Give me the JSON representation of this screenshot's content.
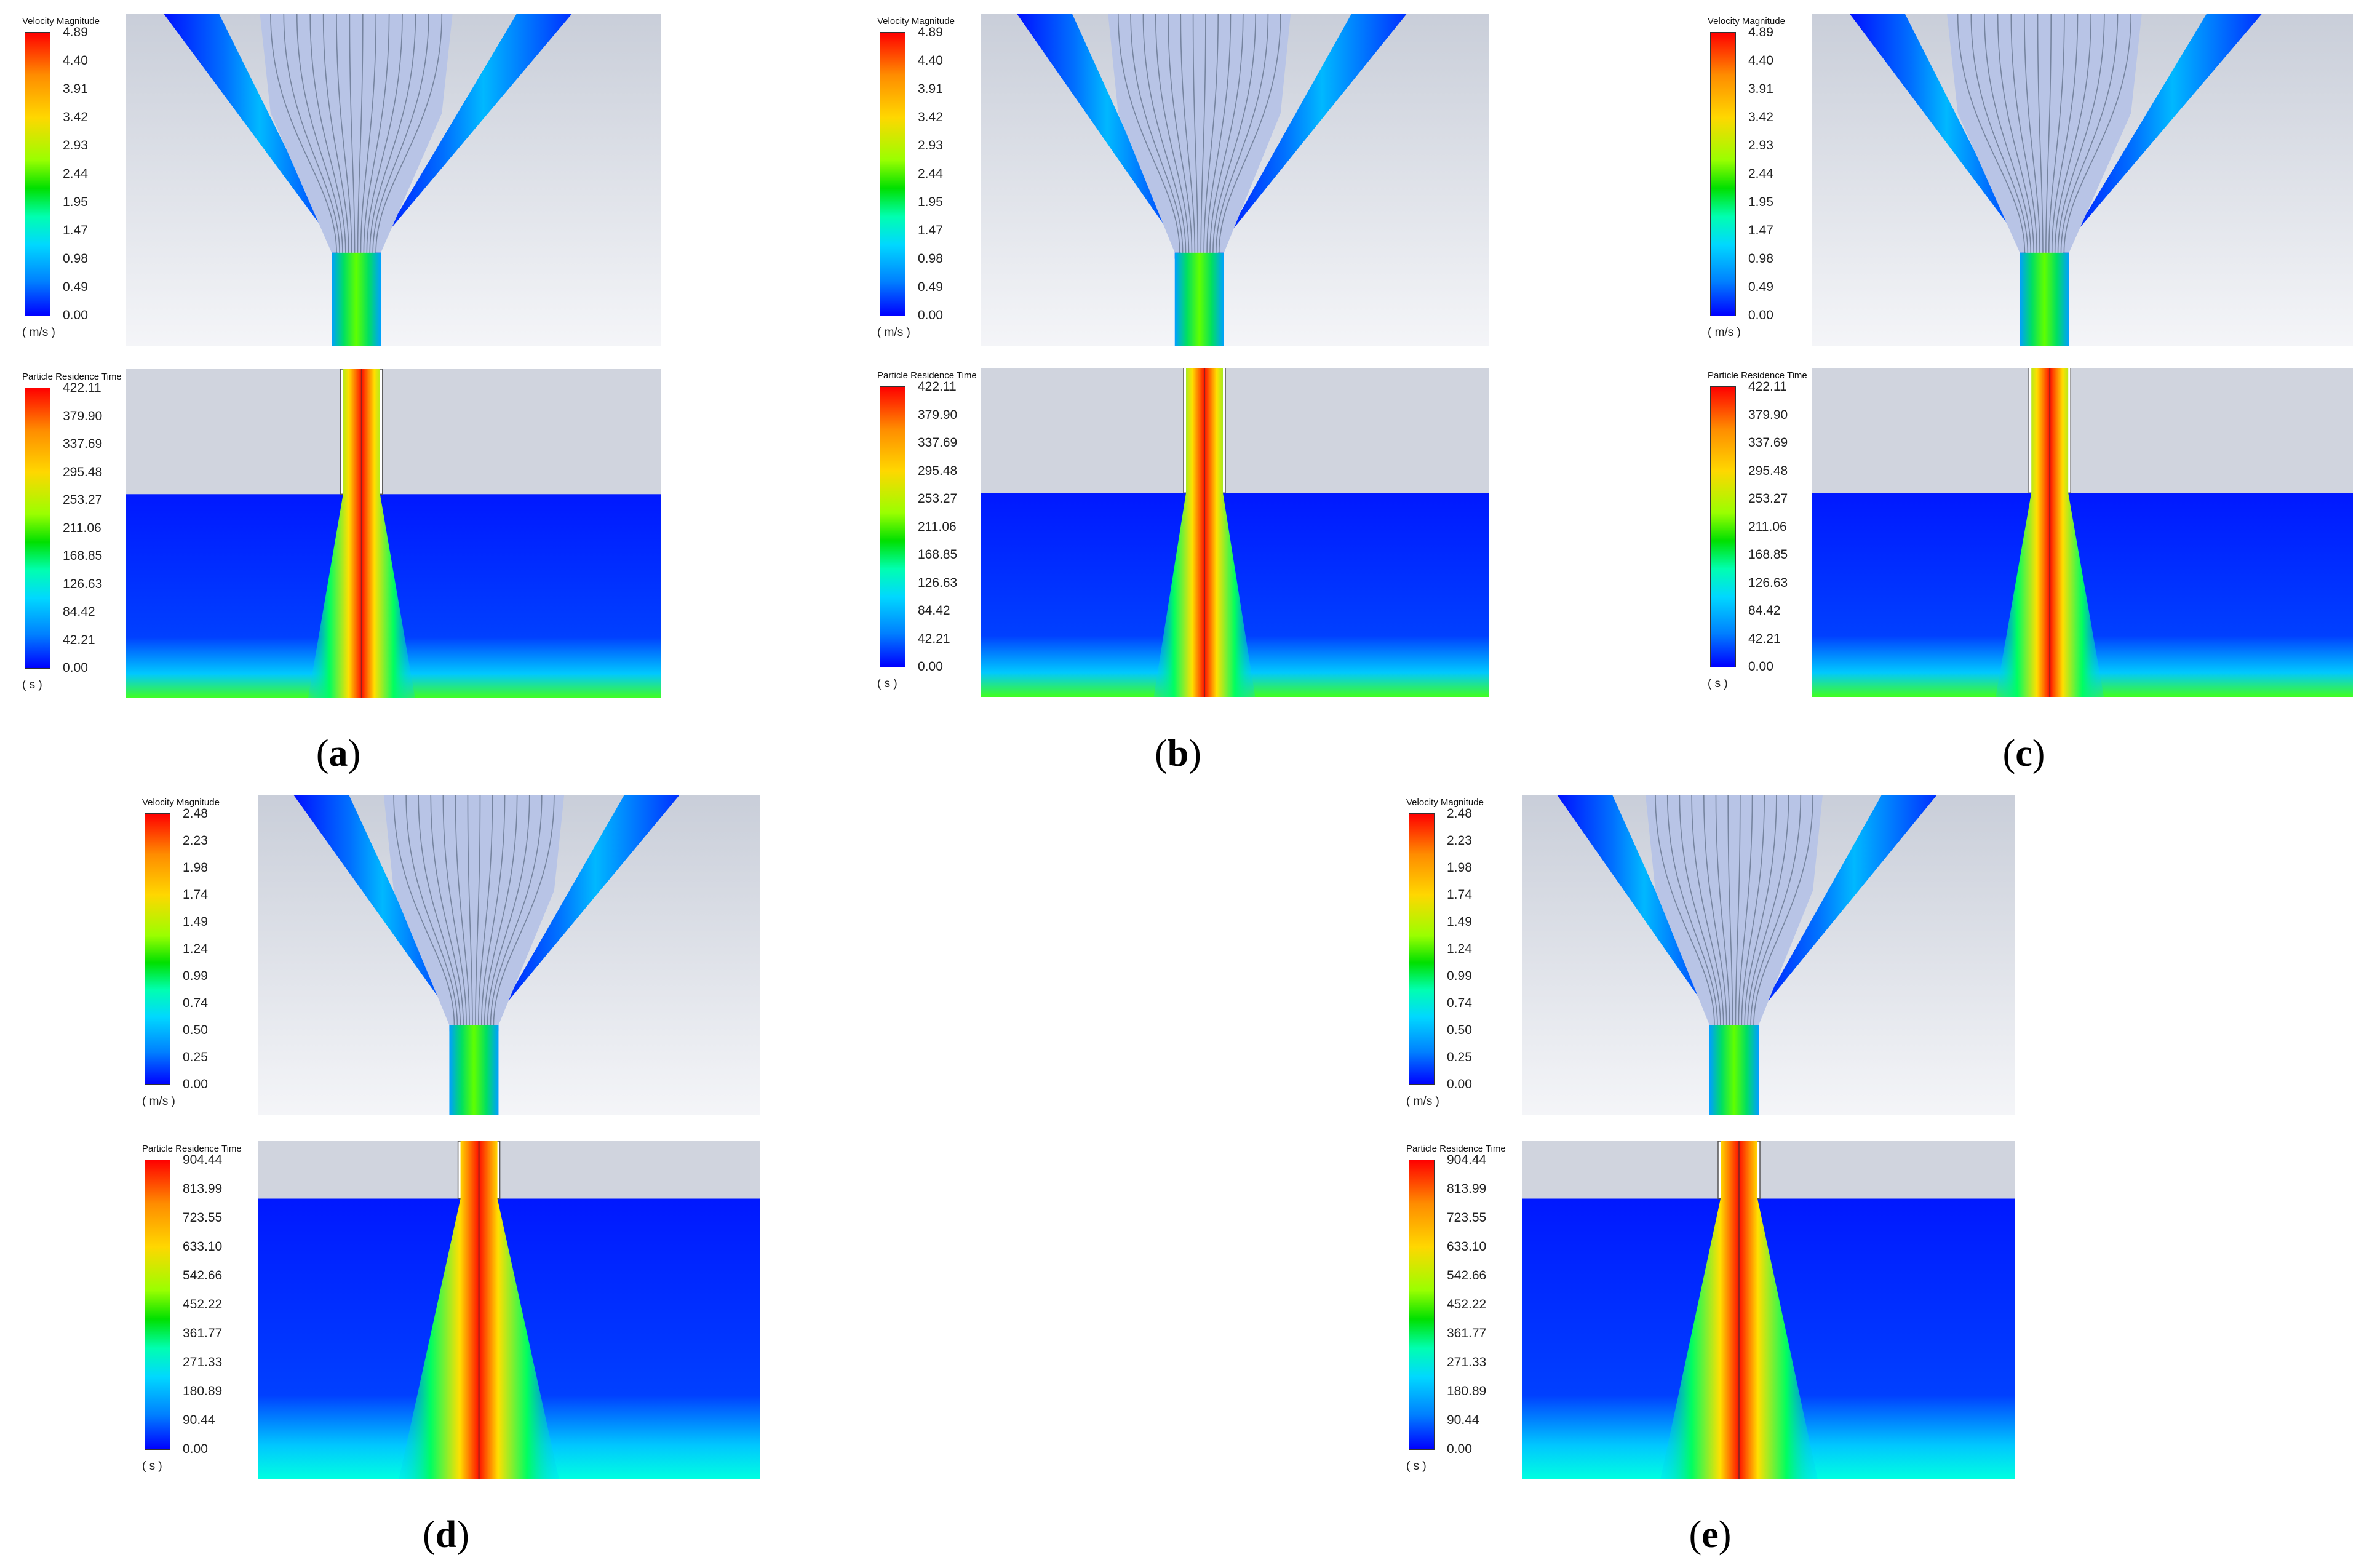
{
  "panels": [
    {
      "id": "a",
      "caption": "a",
      "velocity": {
        "title": "Velocity Magnitude",
        "unit": "( m/s )",
        "ticks": [
          "4.89",
          "4.40",
          "3.91",
          "3.42",
          "2.93",
          "2.44",
          "1.95",
          "1.47",
          "0.98",
          "0.49",
          "0.00"
        ]
      },
      "residence": {
        "title": "Particle Residence Time",
        "unit": "( s )",
        "ticks": [
          "422.11",
          "379.90",
          "337.69",
          "295.48",
          "253.27",
          "211.06",
          "168.85",
          "126.63",
          "84.42",
          "42.21",
          "0.00"
        ]
      }
    },
    {
      "id": "b",
      "caption": "b",
      "velocity": {
        "title": "Velocity Magnitude",
        "unit": "( m/s )",
        "ticks": [
          "4.89",
          "4.40",
          "3.91",
          "3.42",
          "2.93",
          "2.44",
          "1.95",
          "1.47",
          "0.98",
          "0.49",
          "0.00"
        ]
      },
      "residence": {
        "title": "Particle Residence Time",
        "unit": "( s )",
        "ticks": [
          "422.11",
          "379.90",
          "337.69",
          "295.48",
          "253.27",
          "211.06",
          "168.85",
          "126.63",
          "84.42",
          "42.21",
          "0.00"
        ]
      }
    },
    {
      "id": "c",
      "caption": "c",
      "velocity": {
        "title": "Velocity Magnitude",
        "unit": "( m/s )",
        "ticks": [
          "4.89",
          "4.40",
          "3.91",
          "3.42",
          "2.93",
          "2.44",
          "1.95",
          "1.47",
          "0.98",
          "0.49",
          "0.00"
        ]
      },
      "residence": {
        "title": "Particle Residence Time",
        "unit": "( s )",
        "ticks": [
          "422.11",
          "379.90",
          "337.69",
          "295.48",
          "253.27",
          "211.06",
          "168.85",
          "126.63",
          "84.42",
          "42.21",
          "0.00"
        ]
      }
    },
    {
      "id": "d",
      "caption": "d",
      "velocity": {
        "title": "Velocity Magnitude",
        "unit": "( m/s )",
        "ticks": [
          "2.48",
          "2.23",
          "1.98",
          "1.74",
          "1.49",
          "1.24",
          "0.99",
          "0.74",
          "0.50",
          "0.25",
          "0.00"
        ]
      },
      "residence": {
        "title": "Particle Residence Time",
        "unit": "( s )",
        "ticks": [
          "904.44",
          "813.99",
          "723.55",
          "633.10",
          "542.66",
          "452.22",
          "361.77",
          "271.33",
          "180.89",
          "90.44",
          "0.00"
        ]
      }
    },
    {
      "id": "e",
      "caption": "e",
      "velocity": {
        "title": "Velocity Magnitude",
        "unit": "( m/s )",
        "ticks": [
          "2.48",
          "2.23",
          "1.98",
          "1.74",
          "1.49",
          "1.24",
          "0.99",
          "0.74",
          "0.50",
          "0.25",
          "0.00"
        ]
      },
      "residence": {
        "title": "Particle Residence Time",
        "unit": "( s )",
        "ticks": [
          "904.44",
          "813.99",
          "723.55",
          "633.10",
          "542.66",
          "452.22",
          "361.77",
          "271.33",
          "180.89",
          "90.44",
          "0.00"
        ]
      }
    }
  ],
  "colors": {
    "high": "#ff0000",
    "mid": "#00e000",
    "low": "#0000ff",
    "background_gray": "#d0d4de"
  }
}
